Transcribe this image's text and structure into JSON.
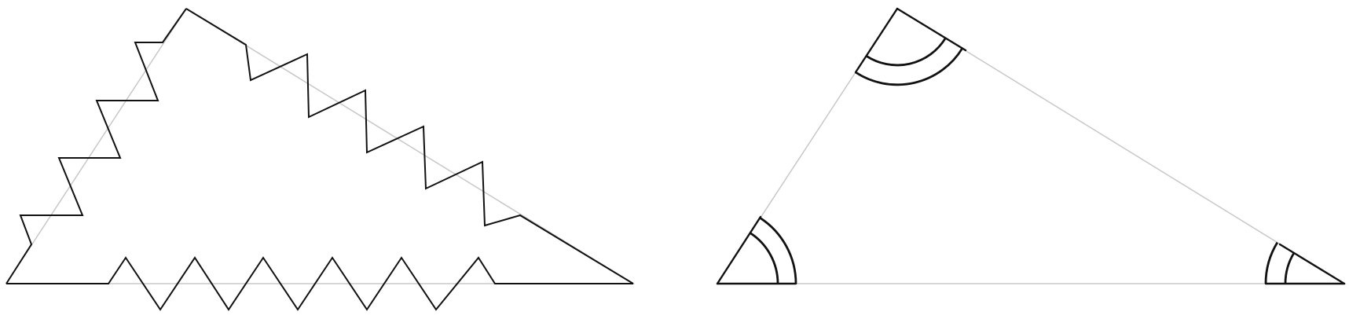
{
  "figure": {
    "colors": {
      "ink": "#111111",
      "guide": "#c8c8c8",
      "background": "#ffffff"
    },
    "left_panel": {
      "shape": "triangle with zigzag-cut sides",
      "zigzag_teeth": {
        "bottom_side": 6,
        "upper_left_side": 5,
        "upper_right_side": 5
      }
    },
    "right_panel": {
      "shape": "triangle with marked angles",
      "angle_marks": [
        {
          "vertex": "top",
          "arcs": 2
        },
        {
          "vertex": "bottom-left",
          "arcs": 2
        },
        {
          "vertex": "bottom-right",
          "arcs": 2
        }
      ]
    }
  }
}
